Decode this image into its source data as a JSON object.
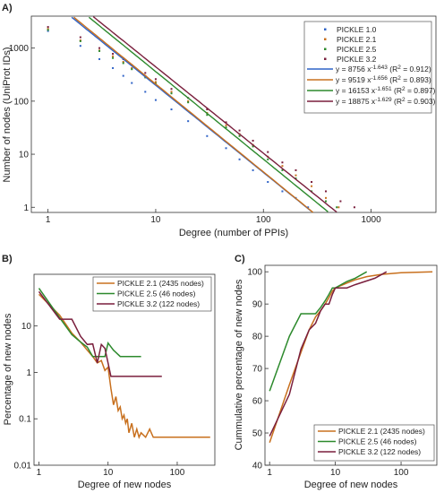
{
  "chart_data": [
    {
      "panel": "A)",
      "type": "scatter",
      "xlabel": "Degree (number of PPIs)",
      "ylabel": "Number of nodes (UniProt IDs)",
      "xscale": "log",
      "yscale": "log",
      "xlim": [
        0.7,
        4000
      ],
      "ylim": [
        0.8,
        4000
      ],
      "xticks": [
        1,
        10,
        100,
        1000
      ],
      "xtick_labels": [
        "1",
        "10",
        "100",
        "1000"
      ],
      "yticks": [
        1,
        10,
        100,
        1000
      ],
      "ytick_labels": [
        "1",
        "10",
        "100",
        "1000"
      ],
      "legend_position": "top-right",
      "series": [
        {
          "name": "PICKLE 1.0",
          "color": "#2f63c7",
          "points": [
            [
              1,
              2100
            ],
            [
              2,
              1100
            ],
            [
              3,
              620
            ],
            [
              4,
              420
            ],
            [
              5,
              300
            ],
            [
              6,
              220
            ],
            [
              8,
              150
            ],
            [
              10,
              105
            ],
            [
              14,
              70
            ],
            [
              20,
              42
            ],
            [
              30,
              22
            ],
            [
              45,
              13
            ],
            [
              60,
              8
            ],
            [
              80,
              5
            ],
            [
              110,
              3
            ],
            [
              150,
              2
            ],
            [
              200,
              1.5
            ],
            [
              260,
              1
            ]
          ]
        },
        {
          "name": "PICKLE 2.1",
          "color": "#c8701e",
          "points": [
            [
              1,
              2300
            ],
            [
              2,
              1400
            ],
            [
              3,
              900
            ],
            [
              4,
              700
            ],
            [
              5,
              550
            ],
            [
              6,
              420
            ],
            [
              8,
              300
            ],
            [
              10,
              230
            ],
            [
              14,
              150
            ],
            [
              20,
              100
            ],
            [
              30,
              60
            ],
            [
              45,
              35
            ],
            [
              60,
              24
            ],
            [
              80,
              15
            ],
            [
              110,
              9
            ],
            [
              150,
              6
            ],
            [
              200,
              4
            ],
            [
              280,
              2.5
            ],
            [
              380,
              1.5
            ],
            [
              500,
              1
            ]
          ]
        },
        {
          "name": "PICKLE 2.5",
          "color": "#2d8a2d",
          "points": [
            [
              1,
              2200
            ],
            [
              2,
              1350
            ],
            [
              3,
              880
            ],
            [
              4,
              650
            ],
            [
              5,
              520
            ],
            [
              6,
              400
            ],
            [
              8,
              280
            ],
            [
              10,
              215
            ],
            [
              14,
              140
            ],
            [
              20,
              95
            ],
            [
              30,
              55
            ],
            [
              45,
              32
            ],
            [
              60,
              22
            ],
            [
              80,
              14
            ],
            [
              110,
              8
            ],
            [
              150,
              5
            ],
            [
              200,
              3.5
            ],
            [
              280,
              2
            ],
            [
              380,
              1.3
            ],
            [
              480,
              1
            ]
          ]
        },
        {
          "name": "PICKLE 3.2",
          "color": "#7a1f3d",
          "points": [
            [
              1,
              2500
            ],
            [
              2,
              1600
            ],
            [
              3,
              1000
            ],
            [
              4,
              780
            ],
            [
              5,
              620
            ],
            [
              6,
              480
            ],
            [
              8,
              340
            ],
            [
              10,
              260
            ],
            [
              14,
              170
            ],
            [
              20,
              115
            ],
            [
              30,
              70
            ],
            [
              45,
              40
            ],
            [
              60,
              28
            ],
            [
              80,
              18
            ],
            [
              110,
              11
            ],
            [
              150,
              7
            ],
            [
              200,
              5
            ],
            [
              280,
              3
            ],
            [
              380,
              2
            ],
            [
              520,
              1.3
            ],
            [
              700,
              1
            ]
          ]
        }
      ],
      "fits": [
        {
          "label": "y =  8756 x^-1.643 (R² = 0.912)",
          "prefix": "y =  8756 x",
          "exp": "-1.643",
          "r2": "(R",
          "r2b": " = 0.912)",
          "a": 8756,
          "b": -1.643,
          "color": "#2f63c7"
        },
        {
          "label": "y =  9519 x^-1.656 (R² = 0.893)",
          "prefix": "y =  9519 x",
          "exp": "-1.656",
          "r2": "(R",
          "r2b": " = 0.893)",
          "a": 9519,
          "b": -1.656,
          "color": "#c8701e"
        },
        {
          "label": "y = 16153 x^-1.651 (R² = 0.897)",
          "prefix": "y = 16153 x",
          "exp": "-1.651",
          "r2": "(R",
          "r2b": " = 0.897)",
          "a": 16153,
          "b": -1.651,
          "color": "#2d8a2d"
        },
        {
          "label": "y = 18875 x^-1.629 (R² = 0.903)",
          "prefix": "y = 18875 x",
          "exp": "-1.629",
          "r2": "(R",
          "r2b": " = 0.903)",
          "a": 18875,
          "b": -1.629,
          "color": "#7a1f3d"
        }
      ]
    },
    {
      "panel": "B)",
      "type": "line",
      "xlabel": "Degree of new nodes",
      "ylabel": "Percentage of new nodes",
      "xscale": "log",
      "yscale": "log",
      "xlim": [
        0.85,
        350
      ],
      "ylim": [
        0.01,
        130
      ],
      "xticks": [
        1,
        10,
        100
      ],
      "xtick_labels": [
        "1",
        "10",
        "100"
      ],
      "yticks": [
        0.01,
        0.1,
        1,
        10
      ],
      "ytick_labels": [
        "0.01",
        "0.1",
        "1",
        "10"
      ],
      "legend_position": "top-right",
      "series": [
        {
          "name": "PICKLE 2.1 (2435 nodes)",
          "color": "#c8701e",
          "x": [
            1,
            2,
            3,
            4,
            5,
            6,
            7,
            8,
            9,
            10,
            11,
            12,
            13,
            14,
            15,
            16,
            17,
            18,
            19,
            20,
            22,
            24,
            26,
            28,
            30,
            35,
            40,
            45,
            50,
            60,
            80,
            100,
            150,
            200,
            300
          ],
          "y": [
            48,
            17,
            7,
            4.5,
            3,
            2.2,
            1.6,
            1.8,
            1.1,
            1.3,
            0.45,
            0.2,
            0.3,
            0.15,
            0.18,
            0.1,
            0.12,
            0.08,
            0.1,
            0.05,
            0.08,
            0.04,
            0.06,
            0.04,
            0.05,
            0.04,
            0.06,
            0.04,
            0.04,
            0.04,
            0.04,
            0.04,
            0.04,
            0.04,
            0.04
          ]
        },
        {
          "name": "PICKLE 2.5 (46 nodes)",
          "color": "#2d8a2d",
          "x": [
            1,
            2,
            3,
            4,
            5,
            6,
            7,
            8,
            9,
            10,
            12,
            15,
            20,
            30
          ],
          "y": [
            65,
            15,
            6.5,
            4.5,
            3.5,
            2.2,
            2.2,
            2.2,
            2.2,
            4.3,
            3.0,
            2.2,
            2.2,
            2.2
          ]
        },
        {
          "name": "PICKLE 3.2 (122 nodes)",
          "color": "#7a1f3d",
          "x": [
            1,
            2,
            3,
            4,
            5,
            6,
            7,
            8,
            9,
            10,
            11,
            15,
            20,
            40,
            60
          ],
          "y": [
            55,
            14,
            14,
            6,
            4,
            4.1,
            1.6,
            4,
            3.3,
            1.6,
            0.82,
            0.82,
            0.82,
            0.82,
            0.82
          ]
        }
      ]
    },
    {
      "panel": "C)",
      "type": "line",
      "xlabel": "Degree of new nodes",
      "ylabel": "Cummulative percentage of new nodes",
      "xscale": "log",
      "yscale": "linear",
      "xlim": [
        0.85,
        350
      ],
      "ylim": [
        40,
        102
      ],
      "xticks": [
        1,
        10,
        100
      ],
      "xtick_labels": [
        "1",
        "10",
        "100"
      ],
      "yticks": [
        40,
        50,
        60,
        70,
        80,
        90,
        100
      ],
      "ytick_labels": [
        "40",
        "50",
        "60",
        "70",
        "80",
        "90",
        "100"
      ],
      "legend_position": "bottom-right",
      "series": [
        {
          "name": "PICKLE 2.1 (2435 nodes)",
          "color": "#c8701e",
          "x": [
            1,
            2,
            3,
            4,
            5,
            6,
            7,
            8,
            9,
            10,
            15,
            20,
            30,
            50,
            100,
            300
          ],
          "y": [
            47,
            65,
            75,
            82,
            86,
            88,
            90,
            92,
            94,
            95,
            96.5,
            97.5,
            98.5,
            99.2,
            99.7,
            100
          ]
        },
        {
          "name": "PICKLE 2.5 (46 nodes)",
          "color": "#2d8a2d",
          "x": [
            1,
            2,
            3,
            4,
            5,
            6,
            7,
            8,
            9,
            10,
            15,
            20,
            30
          ],
          "y": [
            63,
            80,
            87,
            87,
            87,
            89,
            91,
            93,
            95,
            95,
            97,
            98,
            100
          ]
        },
        {
          "name": "PICKLE 3.2 (122 nodes)",
          "color": "#7a1f3d",
          "x": [
            1,
            2,
            3,
            4,
            5,
            6,
            7,
            8,
            9,
            10,
            15,
            20,
            40,
            60
          ],
          "y": [
            49,
            62,
            76,
            82,
            84,
            88,
            90,
            90,
            93,
            95,
            95,
            96,
            98,
            100
          ]
        }
      ]
    }
  ]
}
